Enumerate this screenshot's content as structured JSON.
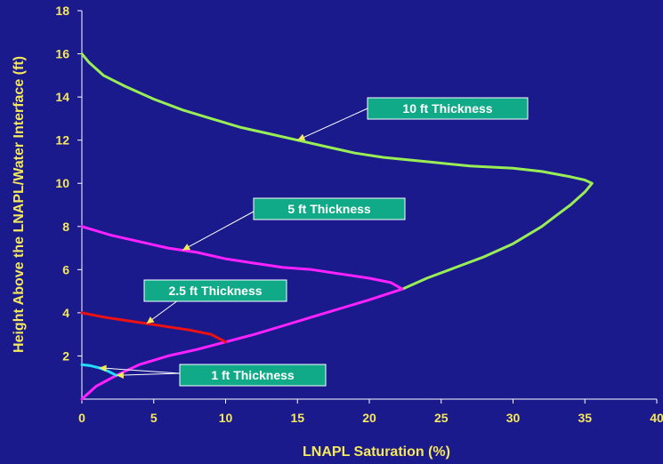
{
  "chart_data": {
    "type": "line",
    "xlabel": "LNAPL Saturation (%)",
    "ylabel": "Height Above the LNAPL/Water Interface (ft)",
    "xlim": [
      0,
      40
    ],
    "ylim": [
      0,
      18
    ],
    "xticks": [
      "0",
      "5",
      "10",
      "15",
      "20",
      "25",
      "30",
      "35",
      "40"
    ],
    "yticks": [
      "2",
      "4",
      "6",
      "8",
      "10",
      "12",
      "14",
      "16",
      "18"
    ],
    "grid": false,
    "series": [
      {
        "color": "#99ee55",
        "points": [
          [
            0,
            16
          ],
          [
            0.5,
            15.6
          ],
          [
            1.5,
            15.0
          ],
          [
            3,
            14.5
          ],
          [
            5,
            13.9
          ],
          [
            7,
            13.4
          ],
          [
            9,
            13.0
          ],
          [
            11,
            12.6
          ],
          [
            13,
            12.3
          ],
          [
            15,
            12.0
          ],
          [
            17,
            11.7
          ],
          [
            19,
            11.4
          ],
          [
            21,
            11.2
          ],
          [
            24,
            11.0
          ],
          [
            27,
            10.8
          ],
          [
            30,
            10.7
          ],
          [
            32,
            10.55
          ],
          [
            34,
            10.3
          ],
          [
            35,
            10.15
          ],
          [
            35.5,
            10.0
          ],
          [
            35,
            9.6
          ],
          [
            34,
            9.0
          ],
          [
            33,
            8.5
          ],
          [
            32,
            8.0
          ],
          [
            30,
            7.2
          ],
          [
            28,
            6.6
          ],
          [
            26,
            6.1
          ],
          [
            24,
            5.6
          ],
          [
            22.3,
            5.1
          ]
        ]
      },
      {
        "color": "#ff22ff",
        "points": [
          [
            0,
            8
          ],
          [
            2,
            7.6
          ],
          [
            4,
            7.3
          ],
          [
            6,
            7.0
          ],
          [
            8,
            6.8
          ],
          [
            10,
            6.5
          ],
          [
            12,
            6.3
          ],
          [
            14,
            6.1
          ],
          [
            16,
            6.0
          ],
          [
            18,
            5.8
          ],
          [
            20,
            5.6
          ],
          [
            21.5,
            5.4
          ],
          [
            22.3,
            5.1
          ],
          [
            20,
            4.6
          ],
          [
            18,
            4.2
          ],
          [
            16,
            3.8
          ],
          [
            14,
            3.4
          ],
          [
            12,
            3.0
          ],
          [
            10,
            2.65
          ],
          [
            8,
            2.3
          ],
          [
            6,
            2.0
          ],
          [
            4,
            1.6
          ],
          [
            2.4,
            1.1
          ],
          [
            1,
            0.6
          ],
          [
            0,
            0
          ]
        ]
      },
      {
        "color": "#ee1111",
        "points": [
          [
            0,
            4
          ],
          [
            1.5,
            3.8
          ],
          [
            3,
            3.65
          ],
          [
            4.5,
            3.5
          ],
          [
            6,
            3.35
          ],
          [
            7.5,
            3.2
          ],
          [
            9,
            3.0
          ],
          [
            10,
            2.65
          ]
        ]
      },
      {
        "color": "#22ddff",
        "points": [
          [
            0,
            1.6
          ],
          [
            0.6,
            1.55
          ],
          [
            1.2,
            1.45
          ],
          [
            1.8,
            1.3
          ],
          [
            2.4,
            1.1
          ]
        ]
      }
    ],
    "annotations": [
      {
        "text": "10 ft Thickness",
        "target": [
          15,
          12.0
        ]
      },
      {
        "text": "5 ft Thickness",
        "target": [
          7,
          6.9
        ]
      },
      {
        "text": "2.5 ft Thickness",
        "target": [
          4.5,
          3.5
        ]
      },
      {
        "text": "1 ft Thickness",
        "target": [
          1.2,
          1.45
        ]
      },
      {
        "text": "1 ft Thickness",
        "target": [
          2.4,
          1.1
        ]
      }
    ]
  }
}
